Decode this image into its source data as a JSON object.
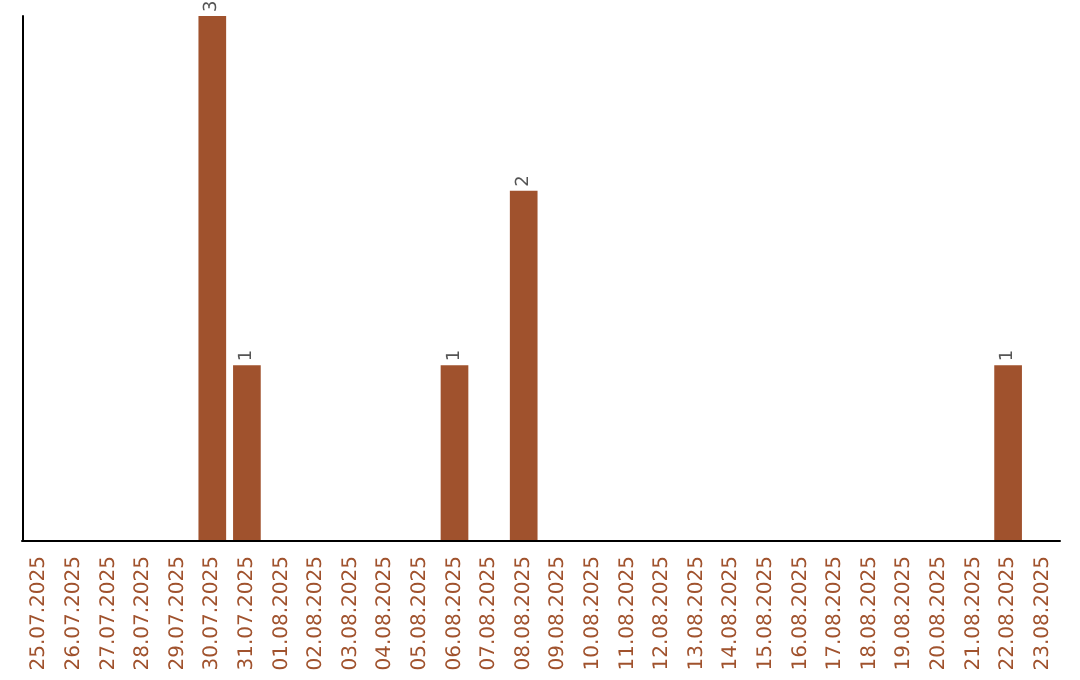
{
  "chart_data": {
    "type": "bar",
    "categories": [
      "25.07.2025",
      "26.07.2025",
      "27.07.2025",
      "28.07.2025",
      "29.07.2025",
      "30.07.2025",
      "31.07.2025",
      "01.08.2025",
      "02.08.2025",
      "03.08.2025",
      "04.08.2025",
      "05.08.2025",
      "06.08.2025",
      "07.08.2025",
      "08.08.2025",
      "09.08.2025",
      "10.08.2025",
      "11.08.2025",
      "12.08.2025",
      "13.08.2025",
      "14.08.2025",
      "15.08.2025",
      "16.08.2025",
      "17.08.2025",
      "18.08.2025",
      "19.08.2025",
      "20.08.2025",
      "21.08.2025",
      "22.08.2025",
      "23.08.2025"
    ],
    "values": [
      0,
      0,
      0,
      0,
      0,
      3,
      1,
      0,
      0,
      0,
      0,
      0,
      1,
      0,
      2,
      0,
      0,
      0,
      0,
      0,
      0,
      0,
      0,
      0,
      0,
      0,
      0,
      0,
      1,
      0
    ],
    "value_labels": [
      null,
      null,
      null,
      null,
      null,
      "3",
      "1",
      null,
      null,
      null,
      null,
      null,
      "1",
      null,
      "2",
      null,
      null,
      null,
      null,
      null,
      null,
      null,
      null,
      null,
      null,
      null,
      null,
      null,
      "1",
      null
    ],
    "color": "#a0522d",
    "ylim": [
      0,
      3
    ],
    "tick_labels": "x"
  }
}
